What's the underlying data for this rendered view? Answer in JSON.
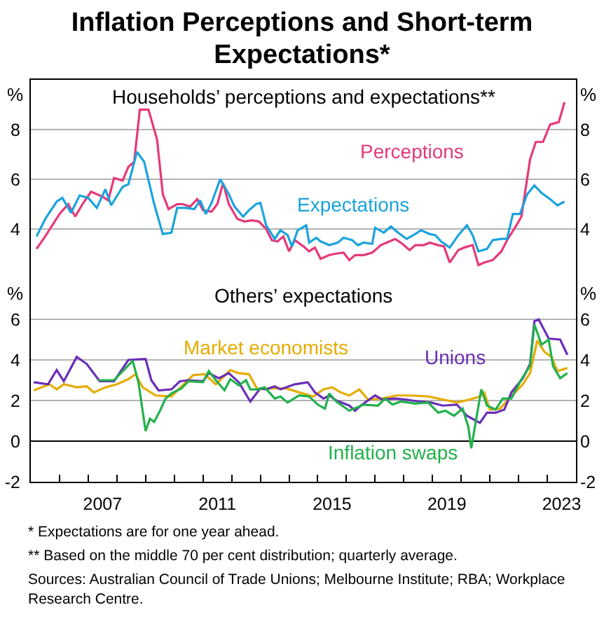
{
  "chart_data": [
    {
      "type": "line",
      "title": "Inflation Perceptions and Short-term Expectations*",
      "subtitle": "Households’ perceptions and expectations**",
      "ylabel": "%",
      "y2label": "%",
      "xlim": [
        2005,
        2024
      ],
      "ylim": [
        2,
        10
      ],
      "yticks": [
        4,
        6,
        8
      ],
      "y2lim": [
        2,
        10
      ],
      "y2ticks": [
        4,
        6,
        8
      ],
      "grid": "y",
      "tick_labels": "y",
      "series": [
        {
          "name": "Perceptions",
          "color": "#e5397a",
          "x": [
            2005.2,
            2005.5,
            2006.0,
            2006.3,
            2006.55,
            2006.8,
            2007.1,
            2007.5,
            2007.7,
            2007.9,
            2008.2,
            2008.4,
            2008.6,
            2008.8,
            2009.1,
            2009.4,
            2009.6,
            2009.8,
            2010.1,
            2010.3,
            2010.55,
            2010.8,
            2011.0,
            2011.3,
            2011.5,
            2011.7,
            2011.9,
            2012.2,
            2012.45,
            2012.7,
            2012.95,
            2013.2,
            2013.4,
            2013.6,
            2013.8,
            2014.0,
            2014.2,
            2014.5,
            2014.7,
            2014.9,
            2015.1,
            2015.4,
            2015.6,
            2015.9,
            2016.1,
            2016.3,
            2016.6,
            2016.9,
            2017.2,
            2017.4,
            2017.7,
            2017.95,
            2018.2,
            2018.4,
            2018.7,
            2018.9,
            2019.2,
            2019.4,
            2019.6,
            2019.9,
            2020.1,
            2020.4,
            2020.6,
            2020.8,
            2021.1,
            2021.4,
            2021.6,
            2021.9,
            2022.1,
            2022.4,
            2022.6,
            2022.85,
            2023.1,
            2023.4,
            2023.6
          ],
          "values": [
            3.2,
            3.7,
            4.6,
            5.0,
            4.5,
            5.0,
            5.5,
            5.3,
            5.15,
            6.05,
            5.95,
            6.5,
            6.7,
            8.8,
            8.8,
            7.6,
            5.4,
            4.8,
            5.0,
            5.0,
            4.9,
            5.2,
            4.75,
            4.7,
            5.0,
            5.85,
            5.0,
            4.4,
            4.3,
            4.35,
            4.3,
            4.0,
            3.55,
            3.5,
            3.7,
            3.1,
            3.55,
            3.3,
            3.1,
            3.25,
            2.8,
            2.95,
            3.0,
            3.05,
            2.75,
            2.95,
            2.95,
            3.05,
            3.35,
            3.45,
            3.6,
            3.4,
            3.15,
            3.35,
            3.35,
            3.45,
            3.35,
            3.3,
            2.65,
            3.15,
            3.25,
            3.35,
            2.55,
            2.65,
            2.75,
            3.1,
            3.55,
            4.1,
            4.5,
            6.8,
            7.5,
            7.5,
            8.2,
            8.3,
            9.1
          ]
        },
        {
          "name": "Expectations",
          "color": "#1ba3dc",
          "x": [
            2005.2,
            2005.5,
            2005.9,
            2006.1,
            2006.4,
            2006.7,
            2007.0,
            2007.3,
            2007.6,
            2007.8,
            2008.2,
            2008.4,
            2008.7,
            2008.95,
            2009.3,
            2009.6,
            2009.9,
            2010.1,
            2010.4,
            2010.7,
            2010.9,
            2011.1,
            2011.3,
            2011.6,
            2011.9,
            2012.1,
            2012.4,
            2012.6,
            2012.85,
            2013.0,
            2013.2,
            2013.5,
            2013.7,
            2013.95,
            2014.1,
            2014.3,
            2014.6,
            2014.7,
            2014.95,
            2015.1,
            2015.4,
            2015.7,
            2015.9,
            2016.2,
            2016.4,
            2016.6,
            2016.9,
            2017.0,
            2017.3,
            2017.55,
            2017.8,
            2018.1,
            2018.4,
            2018.6,
            2018.9,
            2019.1,
            2019.3,
            2019.6,
            2019.9,
            2020.2,
            2020.4,
            2020.6,
            2020.9,
            2021.1,
            2021.4,
            2021.6,
            2021.8,
            2022.05,
            2022.3,
            2022.55,
            2022.8,
            2023.1,
            2023.35,
            2023.6
          ],
          "values": [
            3.7,
            4.4,
            5.1,
            5.25,
            4.65,
            5.35,
            5.25,
            4.85,
            5.6,
            4.95,
            5.7,
            5.8,
            7.1,
            6.7,
            5.0,
            3.8,
            3.85,
            4.85,
            4.85,
            4.8,
            5.15,
            4.6,
            5.05,
            6.0,
            5.4,
            4.9,
            4.5,
            4.75,
            5.0,
            5.05,
            4.15,
            3.6,
            3.95,
            3.75,
            3.3,
            3.95,
            4.15,
            3.45,
            3.65,
            3.5,
            3.35,
            3.45,
            3.65,
            3.55,
            3.35,
            3.45,
            3.4,
            4.05,
            3.85,
            4.1,
            3.85,
            3.6,
            3.8,
            3.95,
            3.8,
            3.75,
            3.5,
            3.25,
            3.75,
            4.15,
            3.75,
            3.1,
            3.2,
            3.55,
            3.6,
            3.6,
            4.6,
            4.6,
            5.4,
            5.75,
            5.45,
            5.2,
            4.95,
            5.1
          ]
        }
      ]
    },
    {
      "type": "line",
      "title": "Others’ expectations",
      "ylabel": "%",
      "y2label": "%",
      "xlim": [
        2005,
        2024
      ],
      "xticks": [
        {
          "value": 2006,
          "label": null
        },
        {
          "value": 2007,
          "label": null
        },
        {
          "value": 2007.5,
          "label": "2007"
        },
        {
          "value": 2008,
          "label": null
        },
        {
          "value": 2009,
          "label": null
        },
        {
          "value": 2010,
          "label": null
        },
        {
          "value": 2011,
          "label": null
        },
        {
          "value": 2011.5,
          "label": "2011"
        },
        {
          "value": 2012,
          "label": null
        },
        {
          "value": 2013,
          "label": null
        },
        {
          "value": 2014,
          "label": null
        },
        {
          "value": 2015,
          "label": null
        },
        {
          "value": 2015.5,
          "label": "2015"
        },
        {
          "value": 2016,
          "label": null
        },
        {
          "value": 2017,
          "label": null
        },
        {
          "value": 2018,
          "label": null
        },
        {
          "value": 2019,
          "label": null
        },
        {
          "value": 2019.5,
          "label": "2019"
        },
        {
          "value": 2020,
          "label": null
        },
        {
          "value": 2021,
          "label": null
        },
        {
          "value": 2022,
          "label": null
        },
        {
          "value": 2023,
          "label": null
        },
        {
          "value": 2023.5,
          "label": "2023"
        }
      ],
      "ylim": [
        -2,
        8
      ],
      "yticks": [
        -2,
        0,
        2,
        4,
        6
      ],
      "y2lim": [
        -2,
        8
      ],
      "y2ticks": [
        -2,
        0,
        2,
        4,
        6
      ],
      "grid": "y",
      "annotations": [
        "*  Expectations are for one year ahead.",
        "**  Based on the middle 70 per cent distribution; quarterly average.",
        "Sources: Australian Council of Trade Unions; Melbourne Institute; RBA; Workplace Research Centre."
      ],
      "series": [
        {
          "name": "Market economists",
          "color": "#e6ac00",
          "x": [
            2005.1,
            2005.65,
            2005.9,
            2006.15,
            2006.6,
            2006.95,
            2007.2,
            2007.6,
            2008.0,
            2008.4,
            2008.65,
            2008.9,
            2009.35,
            2009.9,
            2010.4,
            2010.65,
            2011.05,
            2011.45,
            2011.95,
            2012.25,
            2012.6,
            2012.9,
            2013.4,
            2013.9,
            2014.35,
            2014.85,
            2015.2,
            2015.5,
            2015.8,
            2016.1,
            2016.45,
            2016.75,
            2017.25,
            2017.75,
            2018.2,
            2018.85,
            2019.35,
            2019.85,
            2020.3,
            2020.65,
            2020.8,
            2021.0,
            2021.35,
            2021.75,
            2022.15,
            2022.4,
            2022.65,
            2022.9,
            2023.15,
            2023.35,
            2023.7
          ],
          "values": [
            2.5,
            2.8,
            2.55,
            2.8,
            2.65,
            2.7,
            2.4,
            2.65,
            2.8,
            3.05,
            3.3,
            2.65,
            2.25,
            2.2,
            2.9,
            3.25,
            3.3,
            2.8,
            3.5,
            3.35,
            3.3,
            2.55,
            2.6,
            2.6,
            2.4,
            2.2,
            2.55,
            2.65,
            2.4,
            2.25,
            2.55,
            2.05,
            2.1,
            2.25,
            2.25,
            2.2,
            2.05,
            1.9,
            2.05,
            2.2,
            2.4,
            1.55,
            1.6,
            2.2,
            2.8,
            3.35,
            4.95,
            4.4,
            4.15,
            3.45,
            3.6
          ]
        },
        {
          "name": "Unions",
          "color": "#6a2eb8",
          "x": [
            2005.1,
            2005.6,
            2005.9,
            2006.15,
            2006.6,
            2006.95,
            2007.4,
            2007.9,
            2008.4,
            2009.0,
            2009.2,
            2009.45,
            2009.9,
            2010.2,
            2010.5,
            2011.0,
            2011.2,
            2011.55,
            2011.9,
            2012.25,
            2012.65,
            2013.0,
            2013.2,
            2013.5,
            2013.7,
            2014.2,
            2014.65,
            2014.9,
            2015.2,
            2015.4,
            2015.65,
            2016.1,
            2016.3,
            2016.5,
            2017.0,
            2017.25,
            2017.7,
            2018.05,
            2018.55,
            2018.95,
            2019.35,
            2019.85,
            2020.2,
            2020.65,
            2020.9,
            2021.2,
            2021.5,
            2021.75,
            2022.15,
            2022.4,
            2022.55,
            2022.7,
            2023.05,
            2023.45,
            2023.7
          ],
          "values": [
            2.9,
            2.8,
            3.5,
            2.95,
            4.15,
            3.8,
            2.95,
            2.95,
            4.0,
            4.05,
            3.0,
            2.5,
            2.55,
            2.95,
            3.0,
            2.95,
            3.35,
            3.1,
            3.35,
            2.9,
            1.95,
            2.6,
            2.55,
            2.7,
            2.55,
            2.8,
            2.9,
            2.4,
            2.1,
            2.25,
            2.0,
            1.75,
            1.5,
            1.75,
            2.25,
            2.05,
            2.1,
            2.05,
            1.95,
            1.9,
            1.75,
            1.8,
            1.25,
            0.9,
            1.4,
            1.4,
            1.55,
            2.4,
            3.1,
            3.8,
            5.9,
            6.0,
            5.05,
            5.0,
            4.25
          ]
        },
        {
          "name": "Inflation swaps",
          "color": "#22b14c",
          "x": [
            2007.35,
            2007.9,
            2008.55,
            2008.75,
            2009.0,
            2009.15,
            2009.3,
            2009.5,
            2009.7,
            2009.9,
            2010.25,
            2010.5,
            2011.0,
            2011.2,
            2011.45,
            2011.75,
            2011.95,
            2012.25,
            2012.5,
            2012.65,
            2012.9,
            2013.15,
            2013.5,
            2013.7,
            2013.95,
            2014.35,
            2014.7,
            2015.0,
            2015.25,
            2015.4,
            2015.65,
            2016.1,
            2016.6,
            2017.1,
            2017.35,
            2017.6,
            2017.9,
            2018.4,
            2018.85,
            2019.2,
            2019.45,
            2019.75,
            2020.05,
            2020.25,
            2020.35,
            2020.5,
            2020.7,
            2020.9,
            2021.2,
            2021.45,
            2021.75,
            2022.1,
            2022.4,
            2022.55,
            2022.8,
            2023.05,
            2023.2,
            2023.45,
            2023.7
          ],
          "values": [
            3.0,
            3.0,
            3.95,
            2.9,
            0.5,
            1.1,
            0.95,
            1.5,
            2.1,
            2.35,
            2.6,
            2.95,
            2.9,
            3.45,
            3.0,
            2.5,
            3.05,
            2.75,
            3.0,
            2.55,
            2.55,
            2.65,
            2.1,
            2.2,
            1.9,
            2.25,
            2.2,
            1.8,
            1.6,
            2.35,
            1.95,
            1.5,
            1.8,
            1.75,
            2.1,
            1.8,
            1.95,
            1.85,
            1.9,
            1.4,
            1.5,
            1.25,
            1.6,
            0.7,
            -0.35,
            0.9,
            2.55,
            1.75,
            1.55,
            2.1,
            2.1,
            3.05,
            3.7,
            5.75,
            4.75,
            5.0,
            3.7,
            3.1,
            3.35
          ]
        }
      ]
    }
  ]
}
